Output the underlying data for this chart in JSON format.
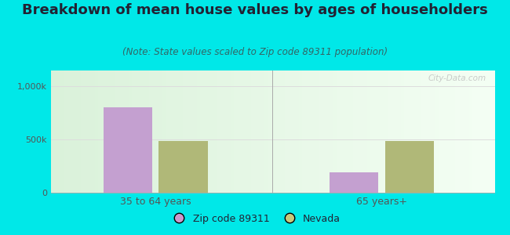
{
  "title": "Breakdown of mean house values by ages of householders",
  "subtitle": "(Note: State values scaled to Zip code 89311 population)",
  "groups": [
    "35 to 64 years",
    "65 years+"
  ],
  "series": [
    "Zip code 89311",
    "Nevada"
  ],
  "values": [
    [
      800000,
      490000
    ],
    [
      190000,
      490000
    ]
  ],
  "bar_colors": [
    "#c4a0d0",
    "#b0b878"
  ],
  "ylim": [
    0,
    1150000
  ],
  "yticks": [
    0,
    500000,
    1000000
  ],
  "ytick_labels": [
    "0",
    "500k",
    "1,000k"
  ],
  "background_outer": "#00e8e8",
  "watermark": "City-Data.com",
  "legend_colors": [
    "#cc99cc",
    "#c8c87a"
  ],
  "title_fontsize": 13,
  "subtitle_fontsize": 8.5,
  "bar_width": 0.28,
  "title_color": "#222233",
  "subtitle_color": "#336666",
  "tick_color": "#555555",
  "grid_color": "#dddddd"
}
